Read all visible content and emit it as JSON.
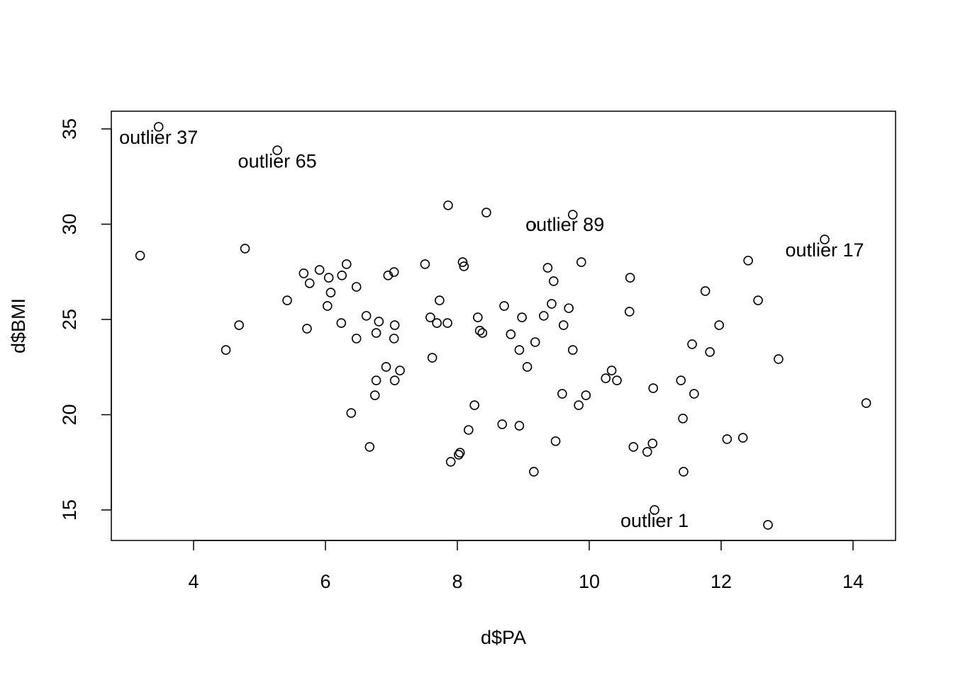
{
  "chart_data": {
    "type": "scatter",
    "x_label": "d$PA",
    "y_label": "d$BMI",
    "xlim": [
      2.753,
      14.645
    ],
    "ylim": [
      13.4,
      35.93
    ],
    "xticks": [
      4,
      6,
      8,
      10,
      12,
      14
    ],
    "yticks": [
      15,
      20,
      25,
      30,
      35
    ],
    "color": "#000000",
    "x": [
      3.47,
      5.27,
      3.19,
      7.86,
      8.44,
      9.75,
      9.12,
      13.57,
      4.78,
      6.32,
      5.67,
      5.91,
      5.76,
      6.05,
      6.25,
      6.08,
      6.47,
      6.95,
      7.04,
      7.51,
      8.08,
      8.1,
      9.88,
      9.37,
      9.46,
      10.62,
      12.41,
      11.76,
      12.56,
      5.42,
      6.03,
      7.73,
      8.71,
      9.43,
      9.69,
      10.61,
      6.62,
      6.81,
      6.24,
      7.59,
      7.69,
      7.85,
      8.31,
      8.98,
      9.31,
      7.05,
      4.69,
      5.72,
      9.61,
      11.97,
      8.34,
      8.38,
      6.77,
      8.81,
      6.47,
      7.04,
      9.18,
      11.56,
      4.49,
      8.94,
      9.75,
      11.83,
      7.62,
      12.87,
      6.92,
      9.06,
      7.13,
      10.34,
      10.25,
      10.42,
      6.77,
      7.05,
      11.39,
      10.97,
      9.59,
      9.95,
      11.59,
      6.75,
      14.2,
      8.26,
      9.84,
      6.39,
      11.42,
      8.68,
      8.94,
      8.17,
      12.09,
      12.33,
      9.49,
      10.96,
      6.67,
      10.67,
      10.88,
      8.04,
      8.02,
      7.9,
      9.16,
      11.43,
      10.99,
      12.71
    ],
    "values": [
      35.11,
      33.88,
      28.35,
      30.99,
      30.61,
      30.5,
      29.91,
      29.2,
      28.72,
      27.9,
      27.42,
      27.6,
      26.9,
      27.19,
      27.31,
      26.41,
      26.71,
      27.31,
      27.49,
      27.9,
      28.01,
      27.79,
      28.01,
      27.71,
      27.01,
      27.19,
      28.09,
      26.49,
      26.0,
      26.0,
      25.71,
      26.0,
      25.71,
      25.82,
      25.59,
      25.41,
      25.19,
      24.89,
      24.81,
      25.11,
      24.81,
      24.81,
      25.11,
      25.11,
      25.19,
      24.7,
      24.7,
      24.52,
      24.7,
      24.7,
      24.41,
      24.29,
      24.29,
      24.22,
      24.0,
      24.0,
      23.81,
      23.7,
      23.4,
      23.4,
      23.4,
      23.29,
      22.99,
      22.92,
      22.51,
      22.51,
      22.32,
      22.32,
      21.91,
      21.8,
      21.8,
      21.8,
      21.8,
      21.39,
      21.1,
      21.02,
      21.1,
      21.02,
      20.61,
      20.5,
      20.5,
      20.09,
      19.8,
      19.5,
      19.42,
      19.2,
      18.72,
      18.79,
      18.61,
      18.49,
      18.31,
      18.31,
      18.05,
      18.01,
      17.9,
      17.53,
      17.01,
      17.01,
      15.0,
      14.22
    ],
    "annotations": [
      {
        "text": "outlier 37",
        "x": 3.47,
        "y": 35.11,
        "position": "below"
      },
      {
        "text": "outlier 65",
        "x": 5.27,
        "y": 33.88,
        "position": "below"
      },
      {
        "text": "outlier 89",
        "x": 9.12,
        "y": 29.91,
        "position": "right"
      },
      {
        "text": "outlier 17",
        "x": 13.57,
        "y": 29.2,
        "position": "below"
      },
      {
        "text": "outlier 1",
        "x": 10.99,
        "y": 15.0,
        "position": "below"
      }
    ]
  }
}
